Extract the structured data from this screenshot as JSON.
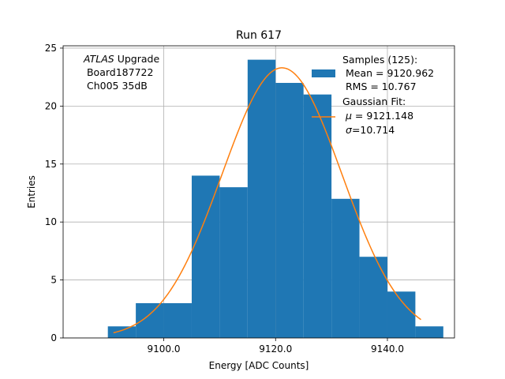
{
  "chart_data": {
    "type": "bar",
    "title": "Run 617",
    "xlabel": "Energy [ADC Counts]",
    "ylabel": "Entries",
    "xlim": [
      9082.0,
      9152.0
    ],
    "ylim": [
      0,
      25.2
    ],
    "grid": true,
    "x_ticks": [
      {
        "value": 9100.0,
        "label": "9100.0"
      },
      {
        "value": 9120.0,
        "label": "9120.0"
      },
      {
        "value": 9140.0,
        "label": "9140.0"
      }
    ],
    "y_ticks": [
      {
        "value": 0,
        "label": "0"
      },
      {
        "value": 5,
        "label": "5"
      },
      {
        "value": 10,
        "label": "10"
      },
      {
        "value": 15,
        "label": "15"
      },
      {
        "value": 20,
        "label": "20"
      },
      {
        "value": 25,
        "label": "25"
      }
    ],
    "histogram": {
      "name": "Samples (125):",
      "color": "#1f77b4",
      "bin_edges": [
        9090,
        9095,
        9100,
        9105,
        9110,
        9115,
        9120,
        9125,
        9130,
        9135,
        9140,
        9145,
        9150
      ],
      "counts": [
        1,
        3,
        3,
        14,
        13,
        24,
        22,
        21,
        12,
        7,
        4,
        1
      ]
    },
    "fit": {
      "name": "Gaussian Fit:",
      "color": "#ff7f0e",
      "mu": 9121.148,
      "sigma": 10.714,
      "amplitude": 23.3,
      "x_range": [
        9091.0,
        9146.0
      ]
    },
    "legend": {
      "placement": "top-right",
      "samples_lines": [
        "Samples (125):",
        " Mean = 9120.962",
        " RMS = 10.767"
      ],
      "fit_lines": [
        "Gaussian Fit:",
        "$\\mu$ = 9121.148",
        "$\\sigma$=10.714"
      ]
    },
    "annotation": {
      "lines": [
        "ATLAS Upgrade",
        " Board187722",
        " Ch005 35dB"
      ]
    }
  }
}
